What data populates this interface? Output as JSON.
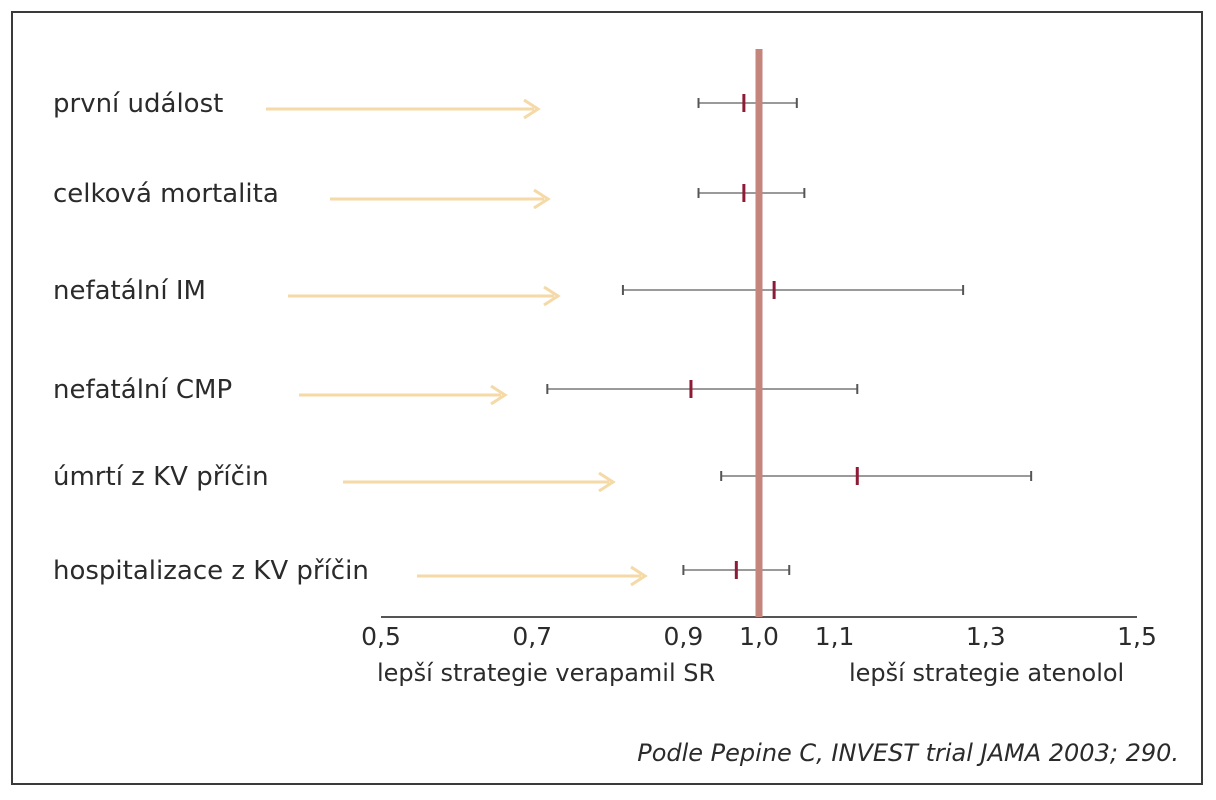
{
  "chart_data": {
    "type": "forest",
    "title": "",
    "xlabel": "",
    "ylabel": "",
    "xlim": [
      0.5,
      1.5
    ],
    "reference_line": 1.0,
    "x_ticks": [
      {
        "value": 0.5,
        "label": "0,5"
      },
      {
        "value": 0.7,
        "label": "0,7"
      },
      {
        "value": 0.9,
        "label": "0,9"
      },
      {
        "value": 1.0,
        "label": "1,0"
      },
      {
        "value": 1.1,
        "label": "1,1"
      },
      {
        "value": 1.3,
        "label": "1,3"
      },
      {
        "value": 1.5,
        "label": "1,5"
      }
    ],
    "rows": [
      {
        "label": "první událost",
        "estimate": 0.98,
        "ci_low": 0.92,
        "ci_high": 1.05
      },
      {
        "label": "celková mortalita",
        "estimate": 0.98,
        "ci_low": 0.92,
        "ci_high": 1.06
      },
      {
        "label": "nefatální IM",
        "estimate": 1.02,
        "ci_low": 0.82,
        "ci_high": 1.27
      },
      {
        "label": "nefatální CMP",
        "estimate": 0.91,
        "ci_low": 0.72,
        "ci_high": 1.13
      },
      {
        "label": "úmrtí z KV příčin",
        "estimate": 1.13,
        "ci_low": 0.95,
        "ci_high": 1.36
      },
      {
        "label": "hospitalizace z KV příčin",
        "estimate": 0.97,
        "ci_low": 0.9,
        "ci_high": 1.04
      }
    ],
    "left_direction_label": "lepší strategie verapamil SR",
    "right_direction_label": "lepší strategie atenolol",
    "colors": {
      "reference_line": "#c4857c",
      "ci_line": "#9a9a9a",
      "point_marker": "#8e1b35",
      "arrow": "#f5d9a6",
      "axis": "#555555"
    }
  },
  "citation": "Podle Pepine C, INVEST trial JAMA 2003; 290."
}
